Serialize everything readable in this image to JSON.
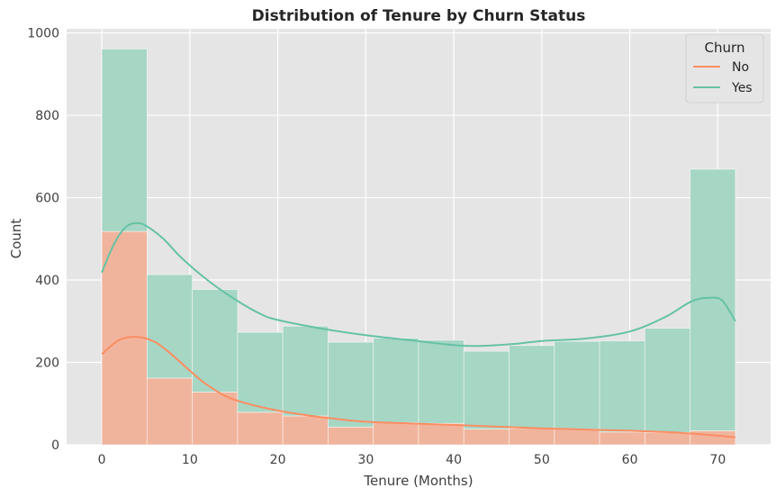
{
  "chart_data": {
    "type": "histogram",
    "title": "Distribution of Tenure by Churn Status",
    "xlabel": "Tenure (Months)",
    "ylabel": "Count",
    "xlim": [
      -4,
      76
    ],
    "ylim": [
      0,
      1010
    ],
    "xticks": [
      0,
      10,
      20,
      30,
      40,
      50,
      60,
      70
    ],
    "yticks": [
      0,
      200,
      400,
      600,
      800,
      1000
    ],
    "grid": true,
    "background": "#e5e5e5",
    "stacked": true,
    "bins": [
      [
        0,
        5.14
      ],
      [
        5.14,
        10.29
      ],
      [
        10.29,
        15.43
      ],
      [
        15.43,
        20.57
      ],
      [
        20.57,
        25.71
      ],
      [
        25.71,
        30.86
      ],
      [
        30.86,
        36
      ],
      [
        36,
        41.14
      ],
      [
        41.14,
        46.29
      ],
      [
        46.29,
        51.43
      ],
      [
        51.43,
        56.57
      ],
      [
        56.57,
        61.71
      ],
      [
        61.71,
        66.86
      ],
      [
        66.86,
        72
      ]
    ],
    "series": [
      {
        "name": "No",
        "color": "#fc8d62",
        "fill": "#f0b49c",
        "counts": [
          518,
          162,
          128,
          79,
          70,
          43,
          54,
          52,
          38,
          40,
          38,
          31,
          30,
          34
        ],
        "kde": [
          [
            0,
            220
          ],
          [
            2,
            255
          ],
          [
            4,
            262
          ],
          [
            6,
            250
          ],
          [
            8,
            218
          ],
          [
            10,
            180
          ],
          [
            12,
            145
          ],
          [
            15,
            110
          ],
          [
            20,
            83
          ],
          [
            25,
            67
          ],
          [
            30,
            56
          ],
          [
            35,
            52
          ],
          [
            40,
            48
          ],
          [
            45,
            44
          ],
          [
            50,
            40
          ],
          [
            55,
            37
          ],
          [
            60,
            34
          ],
          [
            65,
            30
          ],
          [
            70,
            22
          ],
          [
            72,
            18
          ]
        ]
      },
      {
        "name": "Yes",
        "color": "#66c2a5",
        "fill": "#a6d6c4",
        "counts": [
          443,
          251,
          249,
          194,
          218,
          206,
          205,
          202,
          189,
          201,
          213,
          221,
          253,
          635
        ],
        "kde": [
          [
            0,
            418
          ],
          [
            1,
            470
          ],
          [
            2,
            510
          ],
          [
            3,
            533
          ],
          [
            4,
            538
          ],
          [
            5,
            532
          ],
          [
            7,
            500
          ],
          [
            9,
            455
          ],
          [
            12,
            400
          ],
          [
            15,
            355
          ],
          [
            18,
            318
          ],
          [
            20,
            303
          ],
          [
            25,
            282
          ],
          [
            30,
            266
          ],
          [
            35,
            254
          ],
          [
            40,
            242
          ],
          [
            43,
            240
          ],
          [
            47,
            245
          ],
          [
            50,
            252
          ],
          [
            55,
            258
          ],
          [
            60,
            275
          ],
          [
            64,
            310
          ],
          [
            67,
            348
          ],
          [
            69,
            357
          ],
          [
            70.5,
            350
          ],
          [
            72,
            300
          ]
        ]
      }
    ],
    "legend": {
      "title": "Churn",
      "position": "top-right"
    }
  }
}
